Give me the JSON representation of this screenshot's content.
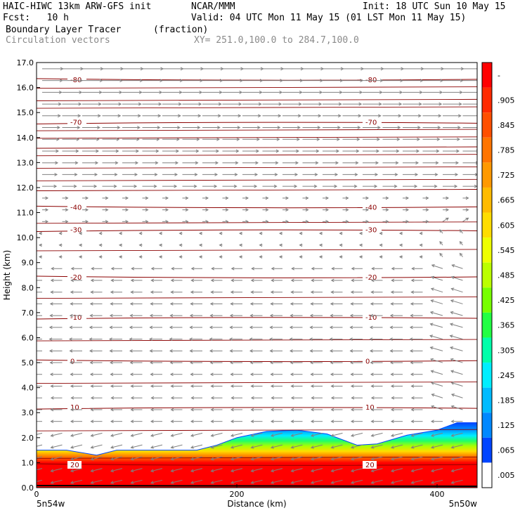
{
  "header": {
    "model": "HAIC-HIWC 13km ARW-GFS init",
    "org": "NCAR/MMM",
    "init": "Init: 18 UTC Sun 10 May 15",
    "fcst": "Fcst:   10 h",
    "valid": "Valid: 04 UTC Mon 11 May 15 (01 LST Mon 11 May 15)",
    "field": "Boundary Layer Tracer",
    "units": "(fraction)",
    "vectors": "Circulation vectors",
    "xy": "XY= 251.0,100.0 to 284.7,100.0"
  },
  "chart_data": {
    "type": "heatmap",
    "xlabel": "Distance (km)",
    "ylabel": "Height (km)",
    "xlim": [
      0,
      440
    ],
    "ylim": [
      0,
      17
    ],
    "x_ticks": [
      "0",
      "200",
      "400"
    ],
    "x_tick_values": [
      0,
      200,
      400
    ],
    "x_end_labels": [
      "5n54w",
      "5n50w"
    ],
    "y_ticks": [
      "0.0",
      "1.0",
      "2.0",
      "3.0",
      "4.0",
      "5.0",
      "6.0",
      "7.0",
      "8.0",
      "9.0",
      "10.0",
      "11.0",
      "12.0",
      "13.0",
      "14.0",
      "15.0",
      "16.0",
      "17.0"
    ],
    "colorbar_labels": [
      "-",
      ".905",
      ".845",
      ".785",
      ".725",
      ".665",
      ".605",
      ".545",
      ".485",
      ".425",
      ".365",
      ".305",
      ".245",
      ".185",
      ".125",
      ".065",
      ".005"
    ],
    "colorbar_colors": [
      "#ff0000",
      "#ff2a00",
      "#ff4f00",
      "#ff7400",
      "#ff9900",
      "#ffbb00",
      "#ffdd00",
      "#eeff00",
      "#bbff00",
      "#77ff00",
      "#22ff44",
      "#00ffaa",
      "#00eeff",
      "#00bbff",
      "#0088ff",
      "#0044ff",
      "#ffffff"
    ],
    "tracer_top_km": {
      "x": [
        0,
        30,
        60,
        80,
        100,
        130,
        160,
        180,
        200,
        230,
        260,
        290,
        320,
        340,
        370,
        400,
        420,
        440
      ],
      "y": [
        1.5,
        1.5,
        1.3,
        1.5,
        1.5,
        1.5,
        1.5,
        1.7,
        2.0,
        2.25,
        2.3,
        2.15,
        1.7,
        1.75,
        2.1,
        2.3,
        2.6,
        2.6
      ]
    },
    "temperature_contours_C": [
      {
        "label": "-80",
        "height_km": 16.3
      },
      {
        "label": "-70",
        "height_km": 14.6
      },
      {
        "label": "-40",
        "height_km": 11.2
      },
      {
        "label": "-30",
        "height_km": 10.3
      },
      {
        "label": "-20",
        "height_km": 8.4
      },
      {
        "label": "-10",
        "height_km": 6.8
      },
      {
        "label": "0",
        "height_km": 5.05
      },
      {
        "label": "10",
        "height_km": 3.2
      },
      {
        "label": "20",
        "height_km": 0.9
      }
    ],
    "contour_color": "#8b0000"
  },
  "colors": {
    "vector": "#808080",
    "frame": "#000000"
  }
}
